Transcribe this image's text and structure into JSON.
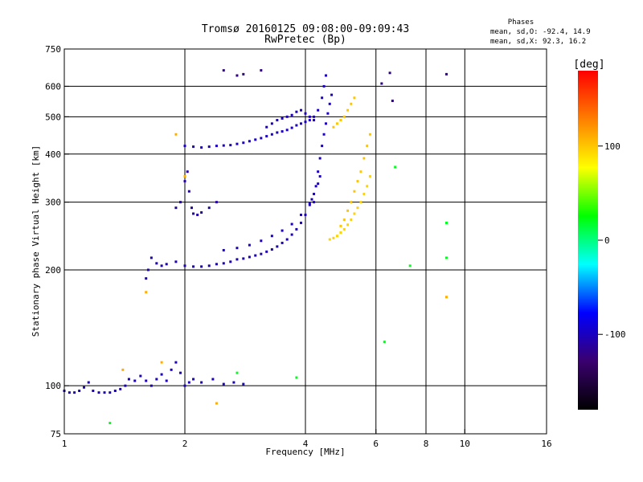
{
  "chart_data": {
    "type": "scatter",
    "title": "Tromsø 20160125 09:08:00-09:09:43",
    "subtitle": "RwPretec (Bp)",
    "xlabel": "Frequency [MHz]",
    "ylabel": "Stationary phase Virtual Height [km]",
    "x_scale": "log",
    "y_scale": "log",
    "xlim": [
      1,
      16
    ],
    "ylim": [
      75,
      750
    ],
    "x_ticks": [
      1,
      2,
      4,
      6,
      8,
      10,
      16
    ],
    "y_ticks": [
      75,
      100,
      200,
      300,
      400,
      500,
      600,
      750
    ],
    "x_grid": [
      2,
      4,
      6,
      8,
      10
    ],
    "y_grid": [
      100,
      200,
      300,
      400,
      500,
      600
    ],
    "grid": true,
    "stats": {
      "heading": "Phases",
      "line_o": "mean, sd,O: -92.4, 14.9",
      "line_x": "mean, sd,X:  92.3, 16.2"
    },
    "colorbar": {
      "label": "[deg]",
      "range": [
        -180,
        180
      ],
      "ticks": [
        100,
        0,
        -100
      ],
      "colormap": "rainbow",
      "colors": [
        "#000000",
        "#3a006e",
        "#0000ff",
        "#00ffff",
        "#00ff00",
        "#ffff00",
        "#ff7f00",
        "#ff0000"
      ]
    },
    "series": [
      {
        "phase": -100,
        "points": [
          [
            1.0,
            97
          ],
          [
            1.03,
            96
          ],
          [
            1.06,
            96
          ],
          [
            1.09,
            97
          ],
          [
            1.12,
            99
          ],
          [
            1.15,
            102
          ],
          [
            1.18,
            97
          ],
          [
            1.22,
            96
          ],
          [
            1.26,
            96
          ],
          [
            1.3,
            96
          ],
          [
            1.34,
            97
          ],
          [
            1.38,
            98
          ],
          [
            1.42,
            100
          ],
          [
            1.45,
            104
          ],
          [
            1.5,
            103
          ],
          [
            1.55,
            106
          ],
          [
            1.6,
            103
          ],
          [
            1.65,
            100
          ],
          [
            1.7,
            104
          ],
          [
            1.75,
            107
          ],
          [
            1.8,
            103
          ],
          [
            1.85,
            110
          ],
          [
            1.9,
            115
          ],
          [
            1.95,
            108
          ],
          [
            2.0,
            100
          ],
          [
            2.05,
            102
          ],
          [
            2.1,
            104
          ],
          [
            2.2,
            102
          ],
          [
            2.35,
            104
          ],
          [
            2.5,
            101
          ],
          [
            2.65,
            102
          ],
          [
            2.8,
            101
          ]
        ]
      },
      {
        "phase": -105,
        "points": [
          [
            1.6,
            190
          ],
          [
            1.62,
            200
          ],
          [
            1.65,
            215
          ],
          [
            1.7,
            208
          ],
          [
            1.75,
            205
          ],
          [
            1.8,
            207
          ],
          [
            1.9,
            210
          ],
          [
            2.0,
            205
          ],
          [
            2.1,
            204
          ],
          [
            2.2,
            204
          ],
          [
            2.3,
            205
          ],
          [
            2.4,
            207
          ],
          [
            2.5,
            208
          ],
          [
            2.6,
            210
          ],
          [
            2.7,
            213
          ],
          [
            2.8,
            214
          ],
          [
            2.9,
            216
          ],
          [
            3.0,
            218
          ],
          [
            3.1,
            220
          ],
          [
            3.2,
            223
          ],
          [
            3.3,
            226
          ],
          [
            3.4,
            230
          ],
          [
            3.5,
            235
          ],
          [
            3.6,
            240
          ],
          [
            3.7,
            247
          ],
          [
            3.8,
            255
          ],
          [
            3.9,
            265
          ],
          [
            4.0,
            278
          ],
          [
            4.1,
            295
          ],
          [
            4.15,
            305
          ]
        ]
      },
      {
        "phase": -100,
        "points": [
          [
            2.5,
            225
          ],
          [
            2.7,
            228
          ],
          [
            2.9,
            232
          ],
          [
            3.1,
            238
          ],
          [
            3.3,
            245
          ],
          [
            3.5,
            253
          ],
          [
            3.7,
            263
          ],
          [
            3.9,
            278
          ],
          [
            4.1,
            298
          ],
          [
            4.2,
            315
          ],
          [
            4.3,
            335
          ],
          [
            4.35,
            350
          ]
        ]
      },
      {
        "phase": -110,
        "points": [
          [
            1.9,
            290
          ],
          [
            1.95,
            300
          ],
          [
            2.0,
            340
          ],
          [
            2.03,
            360
          ],
          [
            2.05,
            320
          ],
          [
            2.08,
            290
          ],
          [
            2.1,
            280
          ],
          [
            2.15,
            278
          ],
          [
            2.2,
            282
          ],
          [
            2.3,
            290
          ],
          [
            2.4,
            300
          ]
        ]
      },
      {
        "phase": -100,
        "points": [
          [
            2.0,
            420
          ],
          [
            2.1,
            418
          ],
          [
            2.2,
            416
          ],
          [
            2.3,
            418
          ],
          [
            2.4,
            420
          ],
          [
            2.5,
            421
          ],
          [
            2.6,
            422
          ],
          [
            2.7,
            425
          ],
          [
            2.8,
            428
          ],
          [
            2.9,
            432
          ],
          [
            3.0,
            436
          ],
          [
            3.1,
            440
          ],
          [
            3.2,
            445
          ],
          [
            3.3,
            450
          ],
          [
            3.4,
            455
          ],
          [
            3.5,
            458
          ],
          [
            3.6,
            462
          ],
          [
            3.7,
            468
          ],
          [
            3.8,
            475
          ],
          [
            3.9,
            480
          ],
          [
            4.0,
            485
          ],
          [
            4.1,
            490
          ],
          [
            4.2,
            500
          ],
          [
            4.3,
            520
          ],
          [
            4.4,
            560
          ],
          [
            4.45,
            600
          ],
          [
            4.5,
            640
          ]
        ]
      },
      {
        "phase": -105,
        "points": [
          [
            3.2,
            470
          ],
          [
            3.3,
            480
          ],
          [
            3.4,
            490
          ],
          [
            3.5,
            495
          ],
          [
            3.6,
            500
          ],
          [
            3.7,
            505
          ],
          [
            3.8,
            515
          ],
          [
            3.9,
            520
          ],
          [
            4.0,
            510
          ],
          [
            4.1,
            500
          ],
          [
            4.2,
            490
          ]
        ]
      },
      {
        "phase": -100,
        "points": [
          [
            4.2,
            300
          ],
          [
            4.25,
            330
          ],
          [
            4.3,
            360
          ],
          [
            4.35,
            390
          ],
          [
            4.4,
            420
          ],
          [
            4.45,
            450
          ],
          [
            4.5,
            480
          ],
          [
            4.55,
            510
          ],
          [
            4.6,
            540
          ],
          [
            4.65,
            570
          ]
        ]
      },
      {
        "phase": 95,
        "points": [
          [
            4.6,
            240
          ],
          [
            4.7,
            242
          ],
          [
            4.8,
            245
          ],
          [
            4.9,
            250
          ],
          [
            5.0,
            255
          ],
          [
            5.1,
            262
          ],
          [
            5.2,
            270
          ],
          [
            5.3,
            280
          ],
          [
            5.4,
            290
          ],
          [
            5.5,
            300
          ],
          [
            5.6,
            315
          ],
          [
            5.7,
            330
          ],
          [
            5.8,
            350
          ]
        ]
      },
      {
        "phase": 100,
        "points": [
          [
            4.9,
            260
          ],
          [
            5.0,
            270
          ],
          [
            5.1,
            285
          ],
          [
            5.2,
            300
          ],
          [
            5.3,
            320
          ],
          [
            5.4,
            340
          ],
          [
            5.5,
            360
          ],
          [
            5.6,
            390
          ],
          [
            5.7,
            420
          ],
          [
            5.8,
            450
          ]
        ]
      },
      {
        "phase": 100,
        "points": [
          [
            4.7,
            470
          ],
          [
            4.8,
            480
          ],
          [
            4.9,
            490
          ],
          [
            5.0,
            500
          ],
          [
            5.1,
            520
          ],
          [
            5.2,
            540
          ],
          [
            5.3,
            560
          ]
        ]
      },
      {
        "phase": -120,
        "points": [
          [
            2.5,
            660
          ],
          [
            2.7,
            640
          ],
          [
            2.8,
            645
          ],
          [
            3.1,
            660
          ],
          [
            6.2,
            610
          ],
          [
            6.5,
            650
          ],
          [
            6.6,
            550
          ],
          [
            9.0,
            645
          ]
        ]
      },
      {
        "phase": 110,
        "points": [
          [
            1.9,
            450
          ],
          [
            2.0,
            350
          ],
          [
            1.6,
            175
          ],
          [
            1.75,
            115
          ],
          [
            2.4,
            90
          ],
          [
            1.4,
            110
          ],
          [
            9.0,
            170
          ]
        ]
      },
      {
        "phase": 20,
        "points": [
          [
            6.7,
            370
          ],
          [
            2.7,
            108
          ],
          [
            6.3,
            130
          ],
          [
            7.3,
            205
          ],
          [
            9.0,
            265
          ],
          [
            9.0,
            215
          ],
          [
            3.8,
            105
          ],
          [
            1.3,
            80
          ]
        ]
      }
    ]
  }
}
